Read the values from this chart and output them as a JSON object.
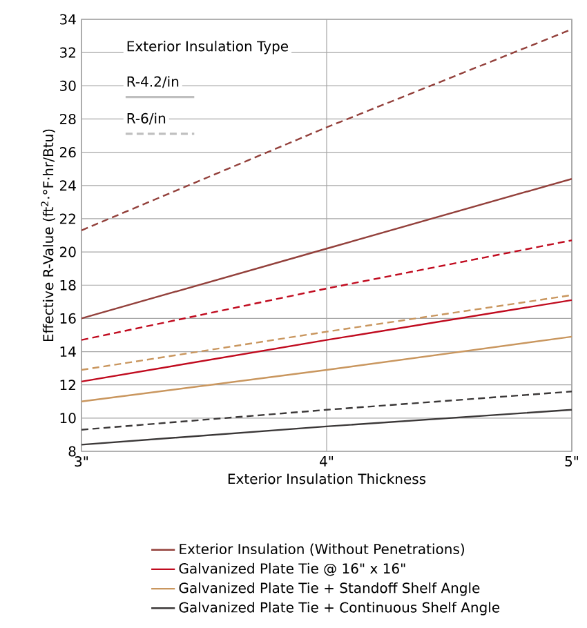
{
  "chart_data": {
    "type": "line",
    "xlabel": "Exterior Insulation Thickness",
    "ylabel": "Effective R-Value (ft$^{2}$·°F·hr/Btu)",
    "legend_title": "Exterior Insulation Type",
    "annotations": [
      "R-4.2/in",
      "R-6/in"
    ],
    "xlim": [
      3,
      5
    ],
    "xticks": [
      {
        "value": 3,
        "label": "3\""
      },
      {
        "value": 4,
        "label": "4\""
      },
      {
        "value": 5,
        "label": "5\""
      }
    ],
    "ylim": [
      8,
      34
    ],
    "yticks": [
      8,
      10,
      12,
      14,
      16,
      18,
      20,
      22,
      24,
      26,
      28,
      30,
      32,
      34
    ],
    "grid": true,
    "legend": "bottom",
    "marker": "none",
    "x": [
      3,
      4,
      5
    ],
    "series": [
      {
        "name": "Exterior Insulation (Without Penetrations)",
        "color": "#93403b",
        "line_style": "solid",
        "values": [
          16.0,
          20.2,
          24.4
        ]
      },
      {
        "name": "Galvanized Plate Tie @ 16\" x 16\"",
        "color": "#c00a1e",
        "line_style": "solid",
        "values": [
          12.2,
          14.7,
          17.1
        ]
      },
      {
        "name": "Galvanized Plate Tie + Standoff Shelf Angle",
        "color": "#c9965e",
        "line_style": "solid",
        "values": [
          11.0,
          12.9,
          14.9
        ]
      },
      {
        "name": "Galvanized Plate Tie + Continuous Shelf Angle",
        "color": "#3b3838",
        "line_style": "solid",
        "values": [
          8.4,
          9.5,
          10.5
        ]
      },
      {
        "color": "#93403b",
        "line_style": "dashed",
        "values": [
          21.3,
          27.5,
          33.4
        ]
      },
      {
        "color": "#c00a1e",
        "line_style": "dashed",
        "values": [
          14.7,
          17.8,
          20.7
        ]
      },
      {
        "color": "#c9965e",
        "line_style": "dashed",
        "values": [
          12.9,
          15.2,
          17.4
        ]
      },
      {
        "color": "#3b3838",
        "line_style": "dashed",
        "values": [
          9.3,
          10.5,
          11.6
        ]
      }
    ]
  }
}
